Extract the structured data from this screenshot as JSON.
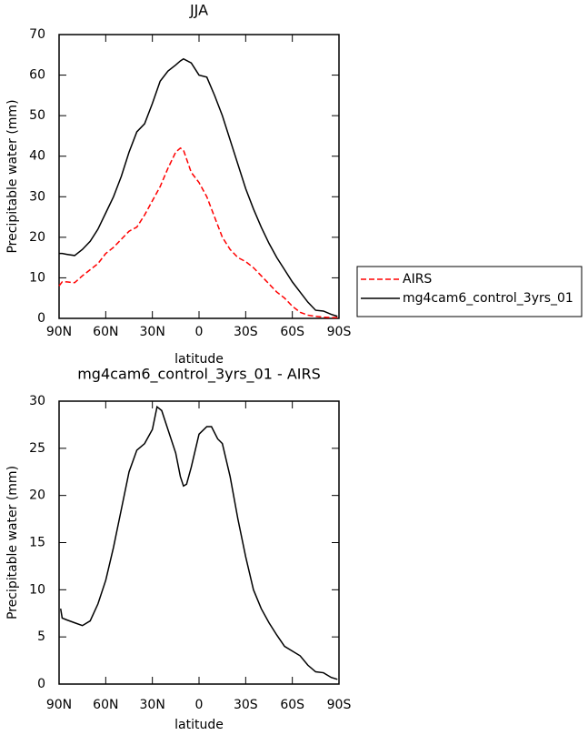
{
  "chart_data": [
    {
      "type": "line",
      "title": "JJA",
      "xlabel": "latitude",
      "ylabel": "Precipitable water (mm)",
      "x": [
        90,
        88,
        85,
        80,
        75,
        70,
        65,
        60,
        55,
        50,
        45,
        40,
        35,
        30,
        25,
        20,
        15,
        12,
        10,
        5,
        0,
        -5,
        -10,
        -15,
        -20,
        -25,
        -30,
        -35,
        -40,
        -45,
        -50,
        -55,
        -60,
        -65,
        -70,
        -75,
        -80,
        -85,
        -89
      ],
      "series": [
        {
          "name": "AIRS",
          "color": "#ff0000",
          "line_style": "dashed",
          "values": [
            8,
            9,
            9,
            8.8,
            10.5,
            12,
            13.5,
            16,
            17.5,
            19.5,
            21.5,
            22.5,
            25.5,
            29,
            32.5,
            37,
            41,
            42,
            41.5,
            36,
            33.5,
            30,
            25,
            20,
            17,
            15,
            14,
            12.5,
            10.5,
            8.5,
            6.5,
            5,
            3,
            1.5,
            0.8,
            0.5,
            0.3,
            0.2,
            0.2
          ]
        },
        {
          "name": "mg4cam6_control_3yrs_01",
          "color": "#000000",
          "line_style": "solid",
          "values": [
            16,
            16,
            15.8,
            15.5,
            17,
            19,
            22,
            26,
            30,
            35,
            41,
            46,
            48,
            53,
            58.5,
            61,
            62.5,
            63.5,
            64,
            63,
            60,
            59.5,
            55,
            50,
            44,
            38,
            32,
            27,
            22.5,
            18.5,
            15,
            12,
            9,
            6.5,
            4,
            2,
            1.8,
            1,
            0.5
          ]
        }
      ],
      "xlim": [
        90,
        -90
      ],
      "xticks": [
        {
          "value": 90,
          "label": "90N"
        },
        {
          "value": 60,
          "label": "60N"
        },
        {
          "value": 30,
          "label": "30N"
        },
        0,
        {
          "value": -30,
          "label": "30S"
        },
        {
          "value": -60,
          "label": "60S"
        },
        {
          "value": -90,
          "label": "90S"
        }
      ],
      "ylim": [
        0,
        70
      ],
      "yticks": [
        0,
        10,
        20,
        30,
        40,
        50,
        60,
        70
      ],
      "legend": "right"
    },
    {
      "type": "line",
      "title": "mg4cam6_control_3yrs_01 - AIRS",
      "xlabel": "latitude",
      "ylabel": "Precipitable water (mm)",
      "x": [
        89,
        88,
        85,
        80,
        75,
        70,
        65,
        60,
        55,
        50,
        45,
        40,
        35,
        30,
        27,
        24,
        20,
        15,
        12,
        10,
        8,
        5,
        0,
        -5,
        -8,
        -12,
        -15,
        -20,
        -25,
        -30,
        -35,
        -40,
        -45,
        -50,
        -55,
        -60,
        -65,
        -70,
        -75,
        -80,
        -85,
        -89
      ],
      "series": [
        {
          "color": "#000000",
          "line_style": "solid",
          "values": [
            8,
            7,
            6.8,
            6.5,
            6.2,
            6.7,
            8.5,
            11,
            14.5,
            18.5,
            22.5,
            24.8,
            25.5,
            27,
            29.4,
            29,
            27,
            24.5,
            22,
            21,
            21.2,
            23,
            26.5,
            27.3,
            27.3,
            26,
            25.5,
            22,
            17.5,
            13.5,
            10,
            8,
            6.5,
            5.2,
            4,
            3.5,
            3,
            2,
            1.3,
            1.2,
            0.7,
            0.5
          ]
        }
      ],
      "xlim": [
        90,
        -90
      ],
      "xticks": [
        {
          "value": 90,
          "label": "90N"
        },
        {
          "value": 60,
          "label": "60N"
        },
        {
          "value": 30,
          "label": "30N"
        },
        0,
        {
          "value": -30,
          "label": "30S"
        },
        {
          "value": -60,
          "label": "60S"
        },
        {
          "value": -90,
          "label": "90S"
        }
      ],
      "ylim": [
        0,
        30
      ],
      "yticks": [
        0,
        5,
        10,
        15,
        20,
        25,
        30
      ]
    }
  ]
}
